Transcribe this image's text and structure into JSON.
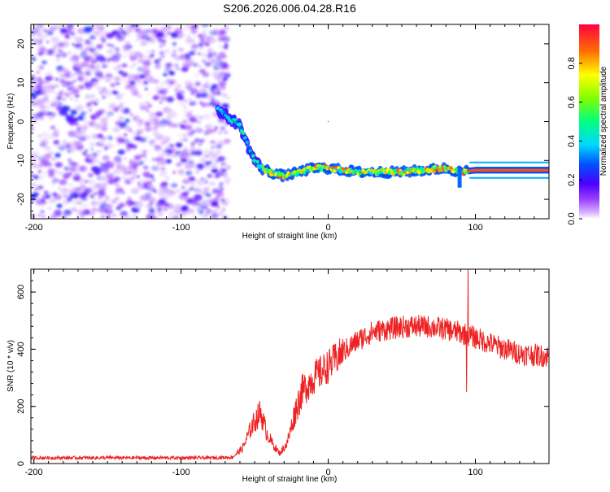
{
  "title": "S206.2026.006.04.28.R16",
  "chart_data": [
    {
      "type": "heatmap",
      "xlabel": "Height of straight line (km)",
      "ylabel": "Frequency (Hz)",
      "xlim": [
        -202,
        150
      ],
      "ylim": [
        -25,
        25
      ],
      "xticks": [
        -200,
        -100,
        0,
        100
      ],
      "yticks": [
        20,
        10,
        0,
        -10,
        -20
      ],
      "colorbar": {
        "label": "Normalized spectral amplitude",
        "range": [
          0,
          1
        ],
        "ticks": [
          "0.0",
          "0.2",
          "0.4",
          "0.6",
          "0.8"
        ]
      },
      "ridge_frequency_hz": [
        {
          "x": -75,
          "y": 3
        },
        {
          "x": -60,
          "y": -1
        },
        {
          "x": -55,
          "y": -6
        },
        {
          "x": -50,
          "y": -10
        },
        {
          "x": -45,
          "y": -12
        },
        {
          "x": -40,
          "y": -13
        },
        {
          "x": -30,
          "y": -14
        },
        {
          "x": -20,
          "y": -13
        },
        {
          "x": -10,
          "y": -12
        },
        {
          "x": 0,
          "y": -12
        },
        {
          "x": 20,
          "y": -13
        },
        {
          "x": 50,
          "y": -13
        },
        {
          "x": 80,
          "y": -12
        },
        {
          "x": 90,
          "y": -13
        },
        {
          "x": 100,
          "y": -12.5
        },
        {
          "x": 150,
          "y": -12.5
        }
      ]
    },
    {
      "type": "line",
      "xlabel": "Height of straight line (km)",
      "ylabel": "SNR (10 * v/v)",
      "xlim": [
        -202,
        150
      ],
      "ylim": [
        0,
        680
      ],
      "xticks": [
        -200,
        -100,
        0,
        100
      ],
      "yticks": [
        0,
        200,
        400,
        600
      ],
      "series": [
        {
          "name": "SNR",
          "color": "#ee2222",
          "points": [
            [
              -202,
              20
            ],
            [
              -150,
              20
            ],
            [
              -80,
              20
            ],
            [
              -65,
              22
            ],
            [
              -58,
              55
            ],
            [
              -52,
              130
            ],
            [
              -46,
              180
            ],
            [
              -42,
              110
            ],
            [
              -38,
              70
            ],
            [
              -33,
              35
            ],
            [
              -28,
              70
            ],
            [
              -22,
              190
            ],
            [
              -18,
              250
            ],
            [
              -10,
              300
            ],
            [
              0,
              340
            ],
            [
              10,
              390
            ],
            [
              20,
              430
            ],
            [
              30,
              460
            ],
            [
              40,
              470
            ],
            [
              50,
              478
            ],
            [
              60,
              480
            ],
            [
              70,
              478
            ],
            [
              80,
              470
            ],
            [
              88,
              460
            ],
            [
              95,
              450
            ],
            [
              105,
              430
            ],
            [
              115,
              410
            ],
            [
              130,
              385
            ],
            [
              150,
              375
            ]
          ],
          "spikes": [
            {
              "x": 95,
              "y": 680
            },
            {
              "x": 94,
              "y": 250
            }
          ]
        }
      ]
    }
  ]
}
